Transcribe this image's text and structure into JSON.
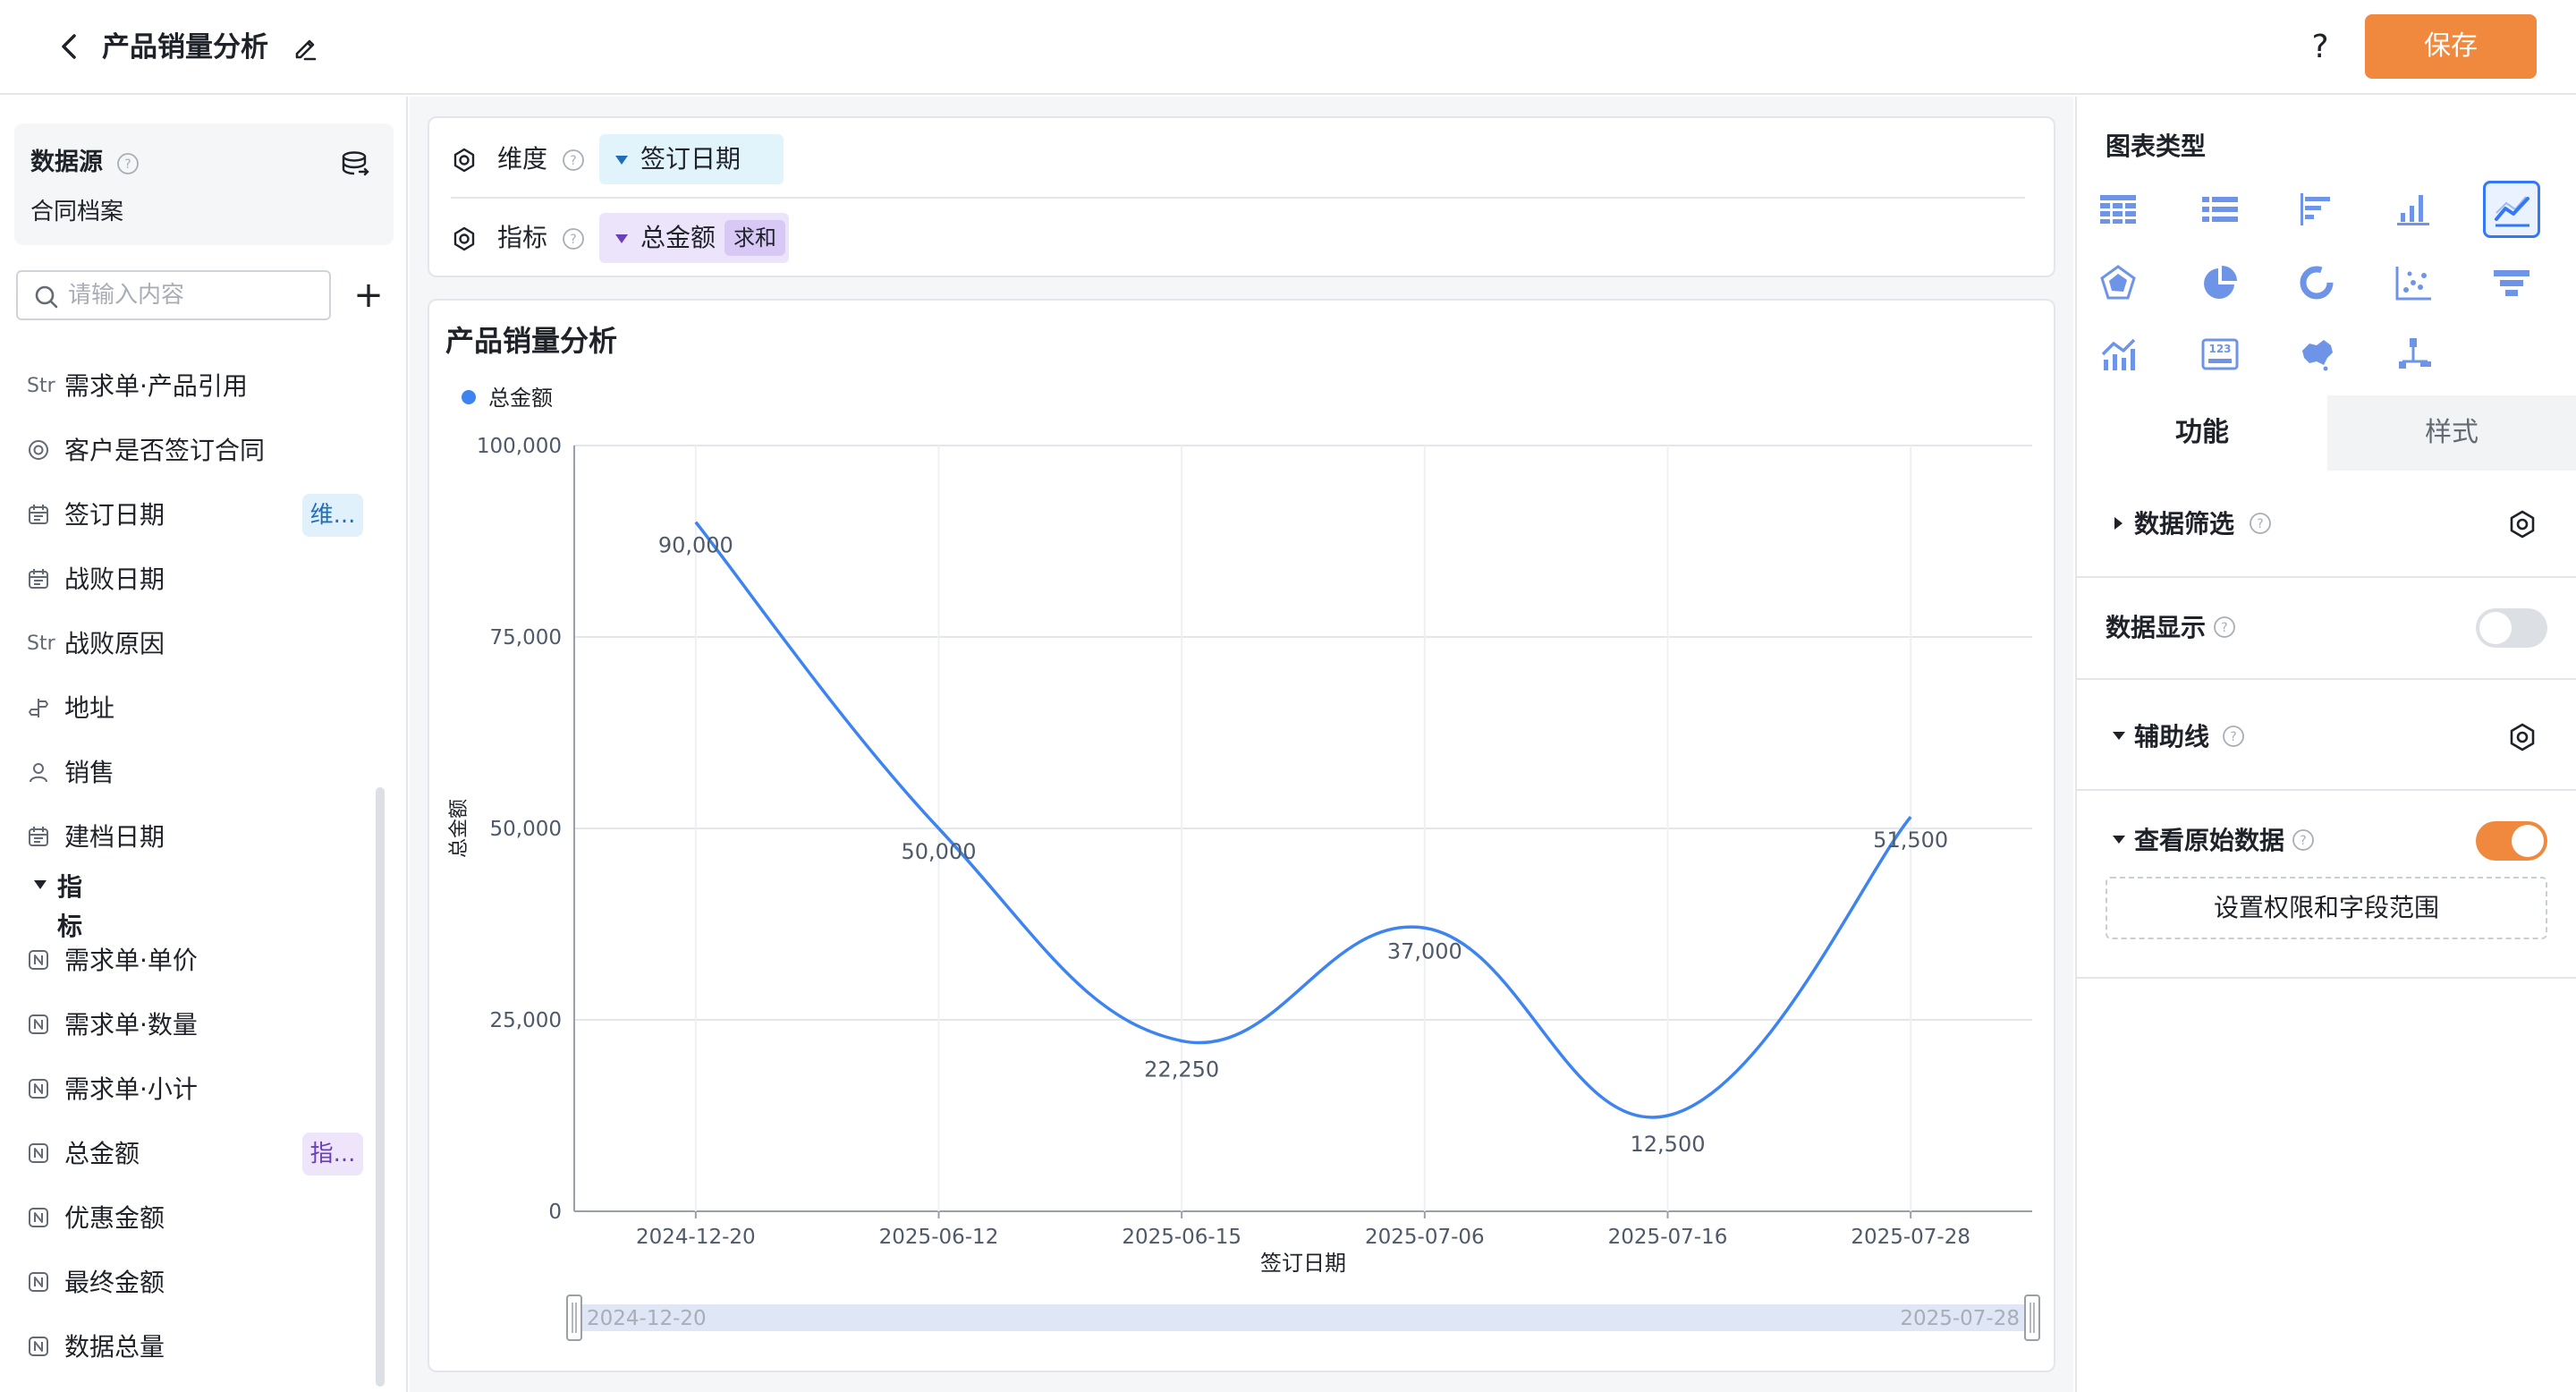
{
  "header": {
    "title": "产品销量分析",
    "help_label": "?",
    "save_label": "保存",
    "accent_color": "#f0883e"
  },
  "left_panel": {
    "datasource": {
      "title": "数据源",
      "value": "合同档案"
    },
    "search": {
      "placeholder": "请输入内容",
      "value": ""
    },
    "add_label": "+",
    "fields": [
      {
        "icon": "Str",
        "label": "需求单·产品引用",
        "tag": ""
      },
      {
        "icon": "radio-icon",
        "label": "客户是否签订合同",
        "tag": ""
      },
      {
        "icon": "calendar-icon",
        "label": "签订日期",
        "tag": "维..."
      },
      {
        "icon": "calendar-icon",
        "label": "战败日期",
        "tag": ""
      },
      {
        "icon": "Str",
        "label": "战败原因",
        "tag": ""
      },
      {
        "icon": "location-icon",
        "label": "地址",
        "tag": ""
      },
      {
        "icon": "user-icon",
        "label": "销售",
        "tag": ""
      },
      {
        "icon": "calendar-icon",
        "label": "建档日期",
        "tag": ""
      }
    ],
    "metric_group_label": "指标",
    "metrics": [
      {
        "icon": "number-icon",
        "label": "需求单·单价",
        "tag": ""
      },
      {
        "icon": "number-icon",
        "label": "需求单·数量",
        "tag": ""
      },
      {
        "icon": "number-icon",
        "label": "需求单·小计",
        "tag": ""
      },
      {
        "icon": "number-icon",
        "label": "总金额",
        "tag": "指..."
      },
      {
        "icon": "number-icon",
        "label": "优惠金额",
        "tag": ""
      },
      {
        "icon": "number-icon",
        "label": "最终金额",
        "tag": ""
      },
      {
        "icon": "number-icon",
        "label": "数据总量",
        "tag": ""
      }
    ]
  },
  "config": {
    "dimension_label": "维度",
    "dimension_value": "签订日期",
    "metric_label": "指标",
    "metric_value": "总金额",
    "metric_agg": "求和"
  },
  "chart_data": {
    "type": "line",
    "title": "产品销量分析",
    "legend": [
      "总金额"
    ],
    "legend_position": "top-left",
    "smooth": true,
    "grid": true,
    "xlabel": "签订日期",
    "ylabel": "总金额",
    "ylim": [
      0,
      100000
    ],
    "yticks": [
      "0",
      "25,000",
      "50,000",
      "75,000",
      "100,000"
    ],
    "categories": [
      "2024-12-20",
      "2025-06-12",
      "2025-06-15",
      "2025-07-06",
      "2025-07-16",
      "2025-07-28"
    ],
    "series": [
      {
        "name": "总金额",
        "values": [
          90000,
          50000,
          22250,
          37000,
          12500,
          51500
        ],
        "labels": [
          "90,000",
          "50,000",
          "22,250",
          "37,000",
          "12,500",
          "51,500"
        ],
        "color": "#3e84f0"
      }
    ],
    "zoom": {
      "start_label": "2024-12-20",
      "end_label": "2025-07-28"
    }
  },
  "right_panel": {
    "chart_type_title": "图表类型",
    "chart_types": [
      "table-icon",
      "detail-table-icon",
      "horizontal-bar-icon",
      "bar-chart-icon",
      "line-chart-icon",
      "radar-chart-icon",
      "pie-chart-icon",
      "donut-chart-icon",
      "scatter-chart-icon",
      "funnel-chart-icon",
      "combo-chart-icon",
      "number-card-icon",
      "map-chart-icon",
      "tree-chart-icon"
    ],
    "active_chart_type": "line-chart-icon",
    "tabs": [
      "功能",
      "样式"
    ],
    "sections": {
      "data_filter": "数据筛选",
      "data_display": "数据显示",
      "data_display_on": false,
      "aux_line": "辅助线",
      "raw_data": "查看原始数据",
      "raw_data_on": true,
      "permission_button": "设置权限和字段范围"
    },
    "toggle_on_color": "#f0883e",
    "toggle_off_color": "#dcdfe4"
  }
}
